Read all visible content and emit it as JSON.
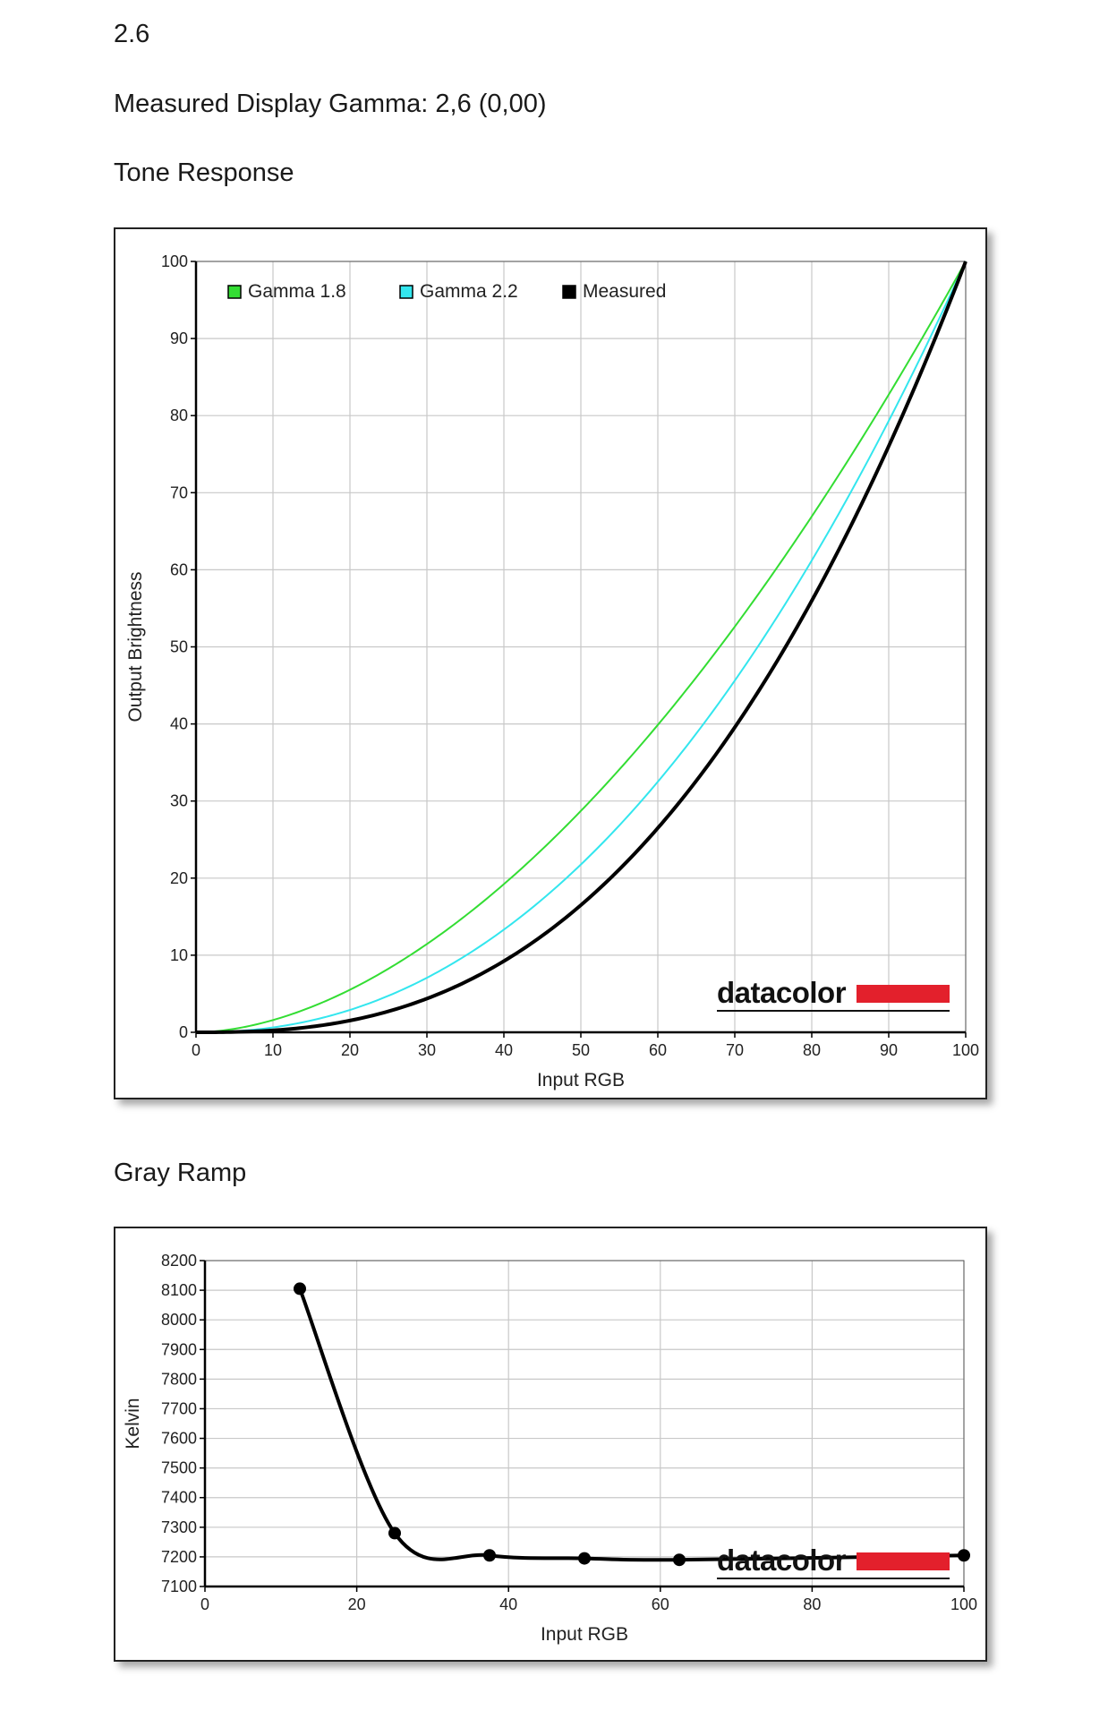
{
  "header": {
    "value": "2.6",
    "measured_gamma": "Measured Display Gamma: 2,6 (0,00)"
  },
  "sections": {
    "tone_title": "Tone Response",
    "gray_title": "Gray Ramp"
  },
  "brand": {
    "name": "datacolor",
    "bar_color": "#e3202c"
  },
  "chart_data": [
    {
      "type": "line",
      "title": "Tone Response",
      "xlabel": "Input RGB",
      "ylabel": "Output Brightness",
      "xlim": [
        0,
        100
      ],
      "ylim": [
        0,
        100
      ],
      "xticks": [
        "0",
        "10",
        "20",
        "30",
        "40",
        "50",
        "60",
        "70",
        "80",
        "90",
        "100"
      ],
      "yticks": [
        "0",
        "10",
        "20",
        "30",
        "40",
        "50",
        "60",
        "70",
        "80",
        "90",
        "100"
      ],
      "grid": true,
      "legend_position": "top-left",
      "series": [
        {
          "name": "Gamma 1.8",
          "color": "#33dd33",
          "gamma": 1.8,
          "x": [
            0,
            10,
            20,
            30,
            40,
            50,
            60,
            70,
            80,
            90,
            100
          ],
          "y": [
            0,
            1.6,
            5.5,
            11.5,
            19.2,
            28.7,
            39.9,
            52.6,
            66.9,
            82.7,
            100
          ]
        },
        {
          "name": "Gamma 2.2",
          "color": "#33e6ee",
          "gamma": 2.2,
          "x": [
            0,
            10,
            20,
            30,
            40,
            50,
            60,
            70,
            80,
            90,
            100
          ],
          "y": [
            0,
            0.6,
            2.9,
            7.1,
            13.3,
            21.8,
            32.5,
            45.6,
            61.2,
            79.3,
            100
          ]
        },
        {
          "name": "Measured",
          "color": "#000000",
          "gamma": 2.6,
          "x": [
            0,
            10,
            20,
            30,
            40,
            50,
            60,
            70,
            80,
            90,
            100
          ],
          "y": [
            0,
            0.3,
            1.5,
            4.4,
            9.2,
            16.5,
            26.5,
            39.5,
            56.0,
            76.0,
            100
          ]
        }
      ]
    },
    {
      "type": "line",
      "title": "Gray Ramp",
      "xlabel": "Input RGB",
      "ylabel": "Kelvin",
      "xlim": [
        0,
        100
      ],
      "ylim": [
        7100,
        8200
      ],
      "xticks": [
        "0",
        "20",
        "40",
        "60",
        "80",
        "100"
      ],
      "yticks": [
        "7100",
        "7200",
        "7300",
        "7400",
        "7500",
        "7600",
        "7700",
        "7800",
        "7900",
        "8000",
        "8100",
        "8200"
      ],
      "grid": true,
      "series": [
        {
          "color": "#000000",
          "x": [
            12.5,
            25,
            37.5,
            50,
            62.5,
            100
          ],
          "y": [
            8105,
            7280,
            7205,
            7195,
            7190,
            7205
          ]
        }
      ]
    }
  ]
}
